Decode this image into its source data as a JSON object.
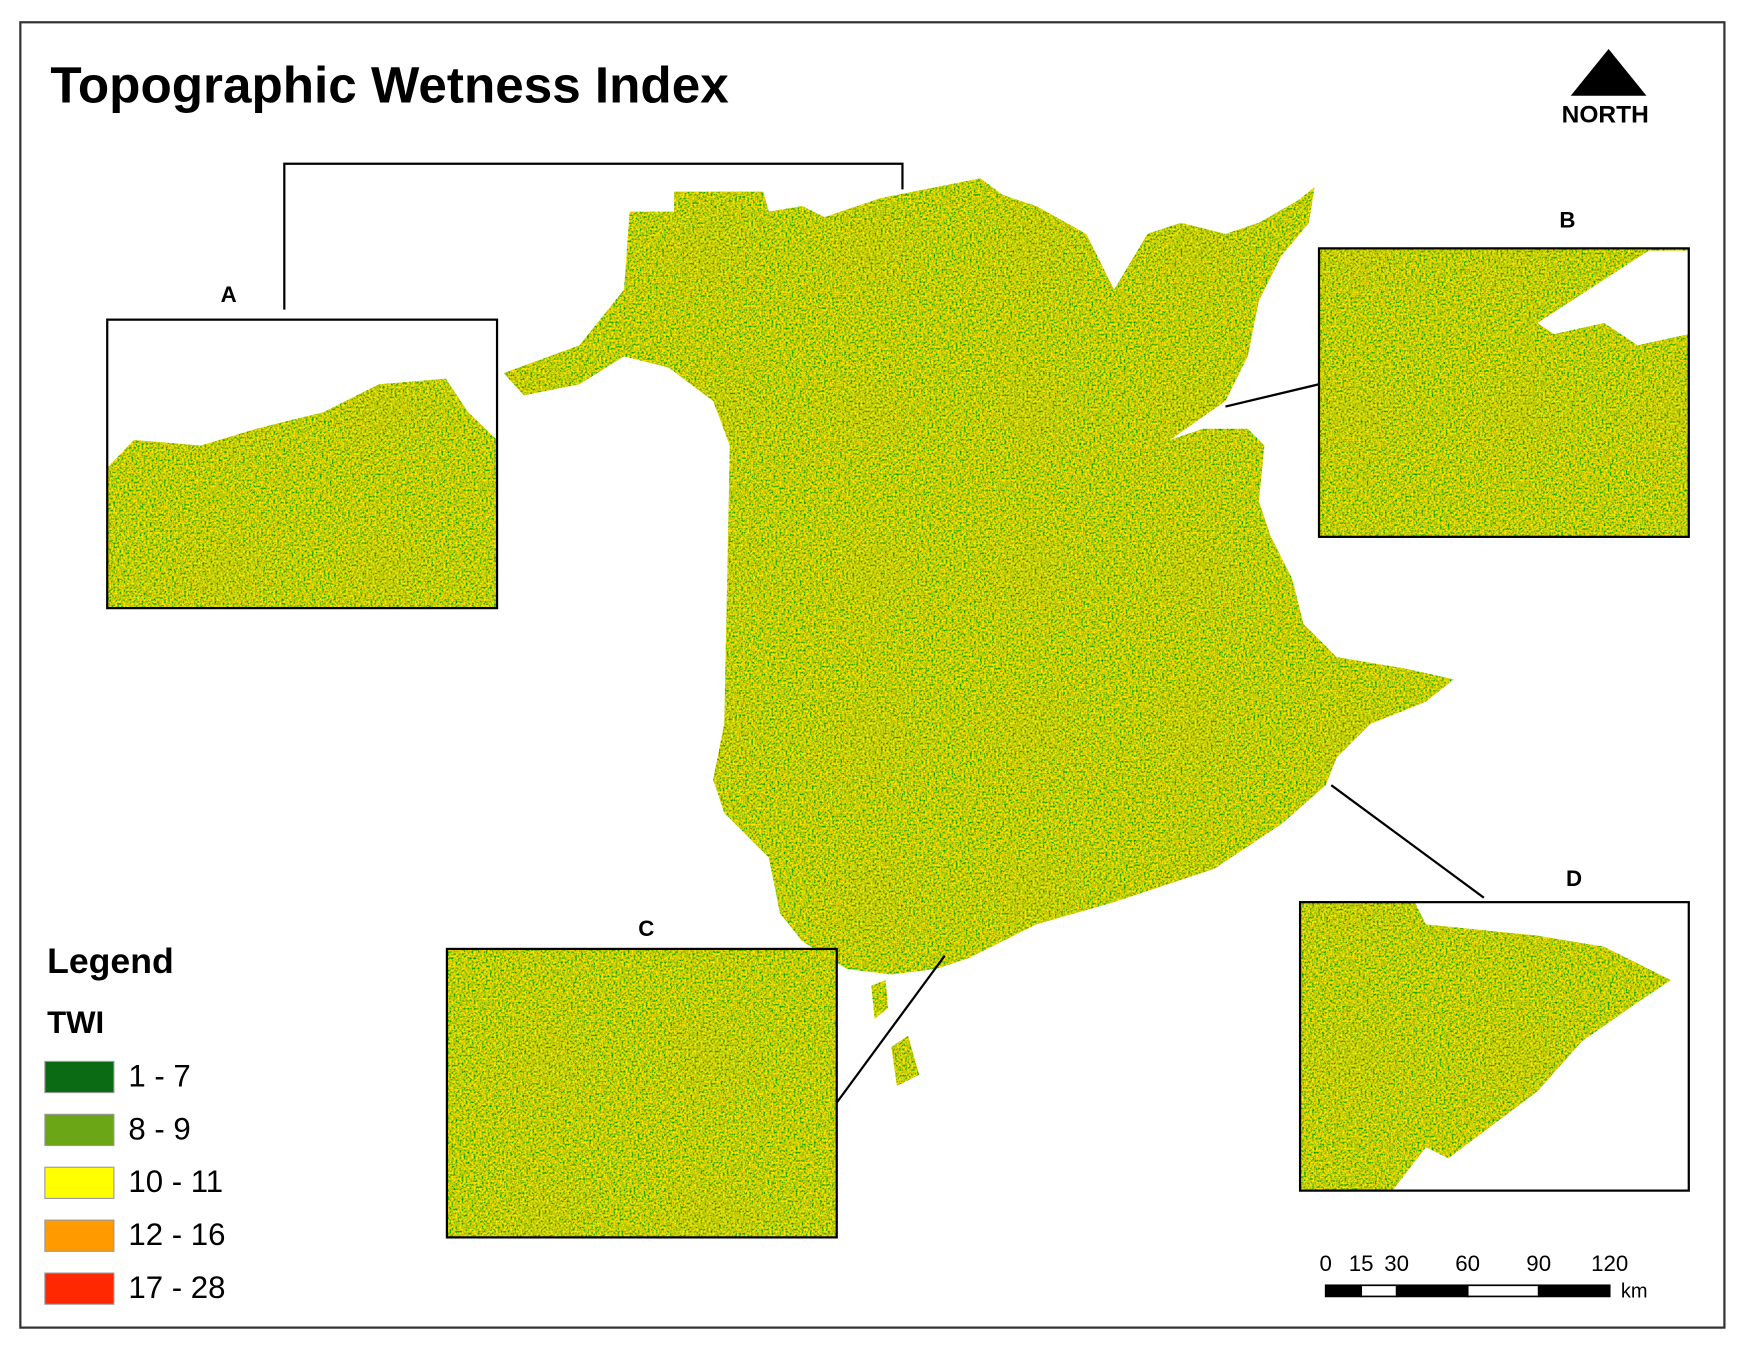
{
  "title": "Topographic Wetness Index",
  "north_arrow": {
    "label": "NORTH"
  },
  "insets": [
    {
      "label": "A"
    },
    {
      "label": "B"
    },
    {
      "label": "C"
    },
    {
      "label": "D"
    }
  ],
  "legend": {
    "title": "Legend",
    "subtitle": "TWI",
    "items": [
      {
        "label": "1 - 7",
        "color": "#0b6b14"
      },
      {
        "label": "8 - 9",
        "color": "#6ba617"
      },
      {
        "label": "10 - 11",
        "color": "#ffff00"
      },
      {
        "label": "12 - 16",
        "color": "#ff9a00"
      },
      {
        "label": "17 - 28",
        "color": "#ff2800"
      }
    ]
  },
  "scale_bar": {
    "ticks": [
      0,
      15,
      30,
      60,
      90,
      120
    ],
    "unit": "km"
  }
}
